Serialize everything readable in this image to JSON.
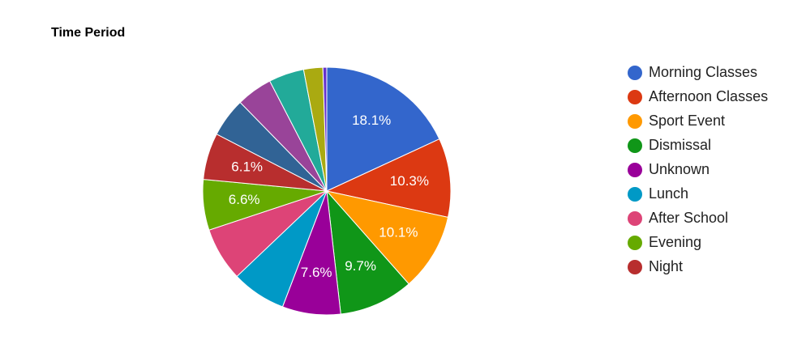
{
  "chart_data": {
    "type": "pie",
    "title": "Time Period",
    "categories": [
      "Morning Classes",
      "Afternoon Classes",
      "Sport Event",
      "Dismissal",
      "Unknown",
      "Lunch",
      "After School",
      "Evening",
      "Night",
      null,
      null,
      null,
      null,
      null
    ],
    "values": [
      18.1,
      10.3,
      10.1,
      9.7,
      7.6,
      7.1,
      7.0,
      6.6,
      6.1,
      5.1,
      4.7,
      4.6,
      2.5,
      0.5
    ],
    "value_labels": [
      "18.1%",
      "10.3%",
      "10.1%",
      "9.7%",
      "7.6%",
      null,
      null,
      "6.6%",
      "6.1%",
      null,
      null,
      null,
      null,
      null
    ],
    "colors": [
      "#3366cc",
      "#dc3912",
      "#ff9900",
      "#109618",
      "#990099",
      "#0099c6",
      "#dd4477",
      "#66aa00",
      "#b82e2e",
      "#316395",
      "#994499",
      "#22aa99",
      "#aaaa11",
      "#6633cc"
    ],
    "legend": "right"
  }
}
